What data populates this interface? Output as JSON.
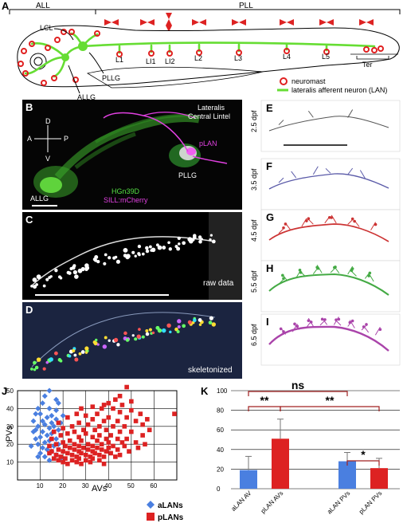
{
  "panelA": {
    "label": "A",
    "all_label": "ALL",
    "pll_label": "PLL",
    "lcl_label": "LCL",
    "pllg_label": "PLLG",
    "allg_label": "ALLG",
    "neuromasts": [
      "L1",
      "LI1",
      "LI2",
      "L2",
      "L3",
      "L4",
      "L5",
      "Ter"
    ],
    "legend_neuromast": "neuromast",
    "legend_lan": "lateralis afferent neuron (LAN)",
    "colors": {
      "neuromast": "#e02020",
      "lan": "#66dd33",
      "bowtie": "#dd2222"
    }
  },
  "panelB": {
    "label": "B",
    "title_line1": "Lateralis",
    "title_line2": "Central Lintel",
    "axis_d": "D",
    "axis_v": "V",
    "axis_a": "A",
    "axis_p": "P",
    "plan_label": "pLAN",
    "pllg_label": "PLLG",
    "allg_label": "ALLG",
    "marker1": "HGn39D",
    "marker2": "SILL:mCherry",
    "colors": {
      "green": "#55e044",
      "magenta": "#e040e0"
    }
  },
  "panelC": {
    "label": "C",
    "caption": "raw data"
  },
  "panelD": {
    "label": "D",
    "caption": "skeletonized"
  },
  "timecourse": [
    {
      "label": "E",
      "stage": "2.5 dpf",
      "color": "#555555"
    },
    {
      "label": "F",
      "stage": "3.5 dpf",
      "color": "#5a5aa8"
    },
    {
      "label": "G",
      "stage": "4.5 dpf",
      "color": "#cc3333"
    },
    {
      "label": "H",
      "stage": "5.5 dpf",
      "color": "#44aa44"
    },
    {
      "label": "I",
      "stage": "6.5 dpf",
      "color": "#aa44aa"
    }
  ],
  "panelJ": {
    "label": "J",
    "chart_data": {
      "type": "scatter",
      "xlabel": "AVs",
      "ylabel": "PVs",
      "xticks": [
        10,
        20,
        30,
        40,
        50,
        60
      ],
      "yticks": [
        10,
        20,
        30,
        40,
        50
      ],
      "xlim": [
        0,
        70
      ],
      "ylim": [
        0,
        50
      ],
      "series": [
        {
          "name": "aLANs",
          "marker": "diamond",
          "color": "#4a7fe0",
          "points": [
            [
              14,
              50
            ],
            [
              12,
              47
            ],
            [
              17,
              45
            ],
            [
              11,
              43
            ],
            [
              9,
              40
            ],
            [
              14,
              40
            ],
            [
              17,
              39
            ],
            [
              10,
              37
            ],
            [
              8,
              37
            ],
            [
              15,
              36
            ],
            [
              13,
              35
            ],
            [
              17,
              34
            ],
            [
              11,
              33
            ],
            [
              7,
              33
            ],
            [
              15,
              32
            ],
            [
              19,
              32
            ],
            [
              12,
              31
            ],
            [
              9,
              30
            ],
            [
              16,
              30
            ],
            [
              14,
              29
            ],
            [
              18,
              28
            ],
            [
              11,
              27
            ],
            [
              7,
              27
            ],
            [
              15,
              26
            ],
            [
              13,
              25
            ],
            [
              10,
              24
            ],
            [
              17,
              23
            ],
            [
              8,
              23
            ],
            [
              14,
              22
            ],
            [
              12,
              21
            ],
            [
              9,
              20
            ],
            [
              16,
              19
            ],
            [
              18,
              20
            ],
            [
              11,
              18
            ],
            [
              6,
              19
            ],
            [
              13,
              17
            ],
            [
              15,
              16
            ],
            [
              10,
              15
            ],
            [
              17,
              14
            ],
            [
              12,
              13
            ],
            [
              9,
              13
            ],
            [
              14,
              11
            ],
            [
              19,
              12
            ],
            [
              8,
              28
            ],
            [
              20,
              36
            ],
            [
              18,
              43
            ]
          ]
        },
        {
          "name": "pLANs",
          "marker": "square",
          "color": "#dd2222",
          "points": [
            [
              48,
              52
            ],
            [
              45,
              47
            ],
            [
              43,
              45
            ],
            [
              50,
              44
            ],
            [
              40,
              43
            ],
            [
              38,
              42
            ],
            [
              46,
              42
            ],
            [
              33,
              41
            ],
            [
              42,
              40
            ],
            [
              37,
              40
            ],
            [
              28,
              40
            ],
            [
              50,
              39
            ],
            [
              45,
              38
            ],
            [
              35,
              37
            ],
            [
              26,
              37
            ],
            [
              54,
              37
            ],
            [
              72,
              37
            ],
            [
              30,
              36
            ],
            [
              40,
              35
            ],
            [
              48,
              35
            ],
            [
              22,
              35
            ],
            [
              33,
              34
            ],
            [
              38,
              33
            ],
            [
              44,
              33
            ],
            [
              52,
              33
            ],
            [
              27,
              32
            ],
            [
              18,
              32
            ],
            [
              31,
              31
            ],
            [
              36,
              30
            ],
            [
              42,
              30
            ],
            [
              47,
              30
            ],
            [
              24,
              30
            ],
            [
              20,
              29
            ],
            [
              29,
              28
            ],
            [
              34,
              28
            ],
            [
              39,
              28
            ],
            [
              45,
              27
            ],
            [
              50,
              27
            ],
            [
              25,
              27
            ],
            [
              16,
              27
            ],
            [
              22,
              26
            ],
            [
              30,
              26
            ],
            [
              36,
              25
            ],
            [
              41,
              25
            ],
            [
              55,
              25
            ],
            [
              19,
              25
            ],
            [
              27,
              24
            ],
            [
              33,
              24
            ],
            [
              39,
              23
            ],
            [
              44,
              23
            ],
            [
              48,
              23
            ],
            [
              15,
              23
            ],
            [
              23,
              22
            ],
            [
              28,
              22
            ],
            [
              35,
              22
            ],
            [
              40,
              21
            ],
            [
              46,
              21
            ],
            [
              52,
              21
            ],
            [
              20,
              21
            ],
            [
              25,
              20
            ],
            [
              31,
              20
            ],
            [
              37,
              20
            ],
            [
              17,
              20
            ],
            [
              21,
              19
            ],
            [
              27,
              19
            ],
            [
              33,
              19
            ],
            [
              42,
              19
            ],
            [
              47,
              19
            ],
            [
              14,
              19
            ],
            [
              23,
              18
            ],
            [
              29,
              18
            ],
            [
              35,
              18
            ],
            [
              40,
              18
            ],
            [
              18,
              17
            ],
            [
              25,
              17
            ],
            [
              31,
              17
            ],
            [
              37,
              17
            ],
            [
              44,
              17
            ],
            [
              20,
              16
            ],
            [
              27,
              16
            ],
            [
              33,
              16
            ],
            [
              39,
              16
            ],
            [
              15,
              16
            ],
            [
              22,
              15
            ],
            [
              28,
              15
            ],
            [
              34,
              15
            ],
            [
              41,
              15
            ],
            [
              17,
              14
            ],
            [
              24,
              14
            ],
            [
              30,
              14
            ],
            [
              36,
              14
            ],
            [
              19,
              13
            ],
            [
              26,
              13
            ],
            [
              32,
              13
            ],
            [
              38,
              13
            ],
            [
              43,
              13
            ],
            [
              21,
              12
            ],
            [
              27,
              12
            ],
            [
              33,
              12
            ],
            [
              18,
              11
            ],
            [
              24,
              11
            ],
            [
              30,
              11
            ],
            [
              36,
              11
            ],
            [
              20,
              10
            ],
            [
              26,
              10
            ],
            [
              32,
              10
            ],
            [
              38,
              9
            ],
            [
              22,
              9
            ],
            [
              28,
              9
            ],
            [
              16,
              12
            ],
            [
              14,
              15
            ],
            [
              45,
              14
            ],
            [
              49,
              16
            ],
            [
              53,
              18
            ],
            [
              56,
              20
            ],
            [
              58,
              28
            ],
            [
              55,
              31
            ],
            [
              57,
              34
            ]
          ]
        }
      ],
      "legend_position": "bottom-right"
    }
  },
  "panelK": {
    "label": "K",
    "chart_data": {
      "type": "bar",
      "categories": [
        "aLAN AV",
        "pLAN AVs",
        "aLAN PVs",
        "pLAN PVs"
      ],
      "values": [
        19,
        51,
        28,
        21
      ],
      "errors": [
        14,
        20,
        9,
        10
      ],
      "colors": [
        "#4a7fe0",
        "#dd2222",
        "#4a7fe0",
        "#dd2222"
      ],
      "yticks": [
        0,
        20,
        40,
        60,
        80,
        100
      ],
      "ylim": [
        0,
        100
      ],
      "grid": true,
      "significance": [
        {
          "label": "ns",
          "from": 0,
          "to": 2
        },
        {
          "label": "**",
          "from": 0,
          "to": 1
        },
        {
          "label": "**",
          "from": 1,
          "to": 3
        },
        {
          "label": "*",
          "from": 2,
          "to": 3
        }
      ]
    }
  }
}
